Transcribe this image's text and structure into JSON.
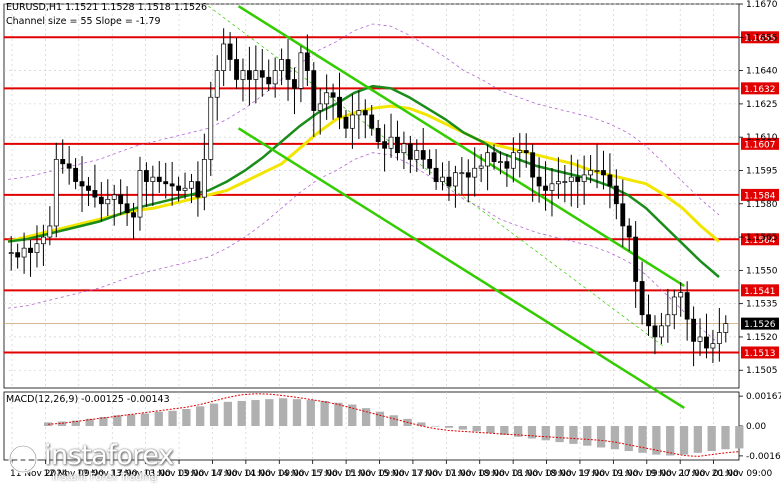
{
  "header": {
    "symbol_line": "EURUSD,H1  1.1521 1.1528 1.1518 1.1526",
    "channel_line": "Channel size = 55 Slope = -1.79"
  },
  "macd": {
    "label": "MACD(12,26,9) -0.00125 -0.00143",
    "axis_labels": [
      "0.00167",
      "0.00",
      "-0.00167"
    ]
  },
  "logo": {
    "text": "instaforex",
    "tagline": "Instant Forex Trading"
  },
  "colors": {
    "background": "#ffffff",
    "candle": "#000000",
    "sma_fast": "#1a8c1a",
    "sma_slow": "#f2e600",
    "channel": "#33cc00",
    "envelope": "#b466d6",
    "level_line": "#e00000",
    "level_label_bg": "#e00000",
    "current_label_bg": "#000000",
    "histogram": "#b0b0b0",
    "signal": "#e00000"
  },
  "chart_data": {
    "type": "candlestick",
    "symbol": "EURUSD",
    "timeframe": "H1",
    "ylim": [
      1.1497,
      1.167
    ],
    "price_axis_ticks": [
      "1.1670",
      "1.1655",
      "1.1640",
      "1.1625",
      "1.1610",
      "1.1595",
      "1.1580",
      "1.1565",
      "1.1550",
      "1.1535",
      "1.1520",
      "1.1505"
    ],
    "time_axis_labels": [
      "11 Nov 2024",
      "12 Nov 09:00",
      "12 Nov 17:00",
      "13 Nov 01:00",
      "13 Nov 09:00",
      "13 Nov 17:00",
      "14 Nov 01:00",
      "14 Nov 09:00",
      "14 Nov 17:00",
      "15 Nov 01:00",
      "15 Nov 09:00",
      "15 Nov 17:00",
      "17 Nov 01:00",
      "17 Nov 09:00",
      "18 Nov 01:00",
      "18 Nov 09:00",
      "18 Nov 17:00",
      "19 Nov 01:00",
      "19 Nov 09:00",
      "19 Nov 17:00",
      "20 Nov 01:00",
      "20 Nov 09:00"
    ],
    "horizontal_levels": [
      "1.1655",
      "1.1632",
      "1.1607",
      "1.1584",
      "1.1564",
      "1.1541",
      "1.1513"
    ],
    "current_price": "1.1526",
    "close_path": [
      1.1558,
      1.1556,
      1.156,
      1.1558,
      1.1562,
      1.1565,
      1.157,
      1.16,
      1.1598,
      1.1596,
      1.159,
      1.1588,
      1.1586,
      1.1583,
      1.158,
      1.1582,
      1.1584,
      1.158,
      1.1576,
      1.1574,
      1.1595,
      1.159,
      1.1592,
      1.159,
      1.1589,
      1.1588,
      1.1586,
      1.1587,
      1.159,
      1.1583,
      1.16,
      1.1628,
      1.164,
      1.1652,
      1.1645,
      1.1636,
      1.164,
      1.1636,
      1.164,
      1.1637,
      1.1634,
      1.164,
      1.1645,
      1.1636,
      1.1632,
      1.1648,
      1.164,
      1.1622,
      1.1625,
      1.163,
      1.1628,
      1.1619,
      1.1614,
      1.162,
      1.1622,
      1.162,
      1.1614,
      1.1608,
      1.1605,
      1.161,
      1.1603,
      1.1607,
      1.16,
      1.1604,
      1.16,
      1.1596,
      1.159,
      1.1592,
      1.1588,
      1.1594,
      1.1594,
      1.1592,
      1.1596,
      1.1597,
      1.1603,
      1.1599,
      1.1599,
      1.1596,
      1.1603,
      1.1604,
      1.1603,
      1.1592,
      1.1588,
      1.1586,
      1.1589,
      1.159,
      1.159,
      1.1592,
      1.159,
      1.1593,
      1.1595,
      1.1595,
      1.1593,
      1.1588,
      1.158,
      1.157,
      1.1565,
      1.1545,
      1.153,
      1.1525,
      1.152,
      1.1525,
      1.153,
      1.1538,
      1.154,
      1.1528,
      1.1518,
      1.152,
      1.1515,
      1.1517,
      1.1522,
      1.1526
    ],
    "sma_fast_path": [
      1.1563,
      1.1564,
      1.1566,
      1.1568,
      1.157,
      1.1572,
      1.1575,
      1.1578,
      1.158,
      1.1582,
      1.1584,
      1.1586,
      1.159,
      1.1595,
      1.1601,
      1.1608,
      1.1615,
      1.1621,
      1.1625,
      1.163,
      1.1633,
      1.1632,
      1.1628,
      1.1623,
      1.1618,
      1.1612,
      1.1608,
      1.1603,
      1.16,
      1.1597,
      1.1595,
      1.1593,
      1.1591,
      1.1588,
      1.1584,
      1.1578,
      1.157,
      1.1562,
      1.1554,
      1.1547
    ],
    "sma_slow_path": [
      1.1563,
      1.1565,
      1.1567,
      1.1569,
      1.1571,
      1.1573,
      1.1575,
      1.1577,
      1.1578,
      1.158,
      1.1582,
      1.1584,
      1.1586,
      1.159,
      1.1594,
      1.1598,
      1.1605,
      1.1612,
      1.1618,
      1.1621,
      1.1623,
      1.1624,
      1.1623,
      1.162,
      1.1616,
      1.1612,
      1.1608,
      1.1606,
      1.1604,
      1.1602,
      1.16,
      1.1598,
      1.1595,
      1.1593,
      1.1591,
      1.1589,
      1.1584,
      1.1578,
      1.157,
      1.1563
    ],
    "channel": {
      "upper": [
        [
          14,
          1.1669
        ],
        [
          19.7,
          1.1543
        ]
      ],
      "lower": [
        [
          14,
          1.1614
        ],
        [
          19.7,
          1.1488
        ]
      ],
      "outer": [
        [
          13.5,
          1.1669
        ],
        [
          19.4,
          1.1532
        ]
      ]
    },
    "macd_histogram": [
      0.0002,
      0.00025,
      0.0003,
      0.0004,
      0.0005,
      0.0006,
      0.00065,
      0.0007,
      0.0008,
      0.00085,
      0.00095,
      0.0011,
      0.00125,
      0.00135,
      0.0014,
      0.00145,
      0.0015,
      0.00155,
      0.0015,
      0.00145,
      0.0014,
      0.0013,
      0.0012,
      0.001,
      0.0008,
      0.0006,
      0.0004,
      0.0002,
      0.0,
      -0.0001,
      -0.0002,
      -0.0003,
      -0.0004,
      -0.0005,
      -0.0006,
      -0.0007,
      -0.0008,
      -0.0009,
      -0.001,
      -0.0011,
      -0.0012,
      -0.0013,
      -0.0014,
      -0.0015,
      -0.0016,
      -0.00165,
      -0.0016,
      -0.0015,
      -0.0014,
      -0.0013,
      -0.00125
    ],
    "macd_signal": [
      0.0001,
      0.00015,
      0.00025,
      0.00035,
      0.00045,
      0.00055,
      0.00065,
      0.00075,
      0.00085,
      0.00095,
      0.00105,
      0.0012,
      0.0014,
      0.0016,
      0.00175,
      0.0018,
      0.00178,
      0.0017,
      0.0016,
      0.00148,
      0.00135,
      0.0012,
      0.001,
      0.0008,
      0.0006,
      0.0004,
      0.0002,
      0.0,
      -0.00015,
      -0.00025,
      -0.0003,
      -0.00035,
      -0.0004,
      -0.00045,
      -0.0005,
      -0.00055,
      -0.0006,
      -0.00065,
      -0.0007,
      -0.00075,
      -0.0008,
      -0.0009,
      -0.00105,
      -0.0012,
      -0.00135,
      -0.0015,
      -0.00165,
      -0.0017,
      -0.0016,
      -0.0015,
      -0.00143
    ]
  }
}
